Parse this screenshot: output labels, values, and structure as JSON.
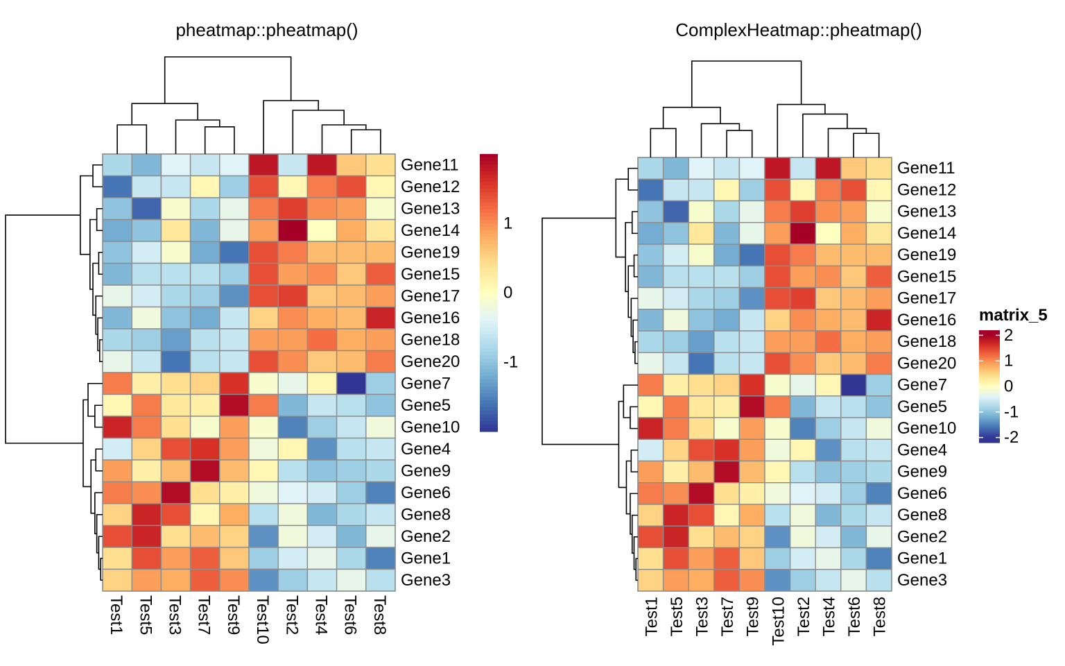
{
  "chart_data": {
    "type": "heatmap",
    "rows": [
      "Gene11",
      "Gene12",
      "Gene13",
      "Gene14",
      "Gene19",
      "Gene15",
      "Gene17",
      "Gene16",
      "Gene18",
      "Gene20",
      "Gene7",
      "Gene5",
      "Gene10",
      "Gene4",
      "Gene9",
      "Gene6",
      "Gene8",
      "Gene2",
      "Gene1",
      "Gene3"
    ],
    "columns": [
      "Test1",
      "Test5",
      "Test3",
      "Test7",
      "Test9",
      "Test10",
      "Test2",
      "Test4",
      "Test6",
      "Test8"
    ],
    "values": [
      [
        -0.8,
        -1.1,
        -0.4,
        -0.6,
        -0.4,
        1.8,
        -0.6,
        1.8,
        0.6,
        0.4
      ],
      [
        -1.6,
        -0.6,
        -0.6,
        0.1,
        -0.9,
        1.4,
        0.1,
        1.1,
        1.4,
        0.1
      ],
      [
        -1.0,
        -1.7,
        -0.1,
        -0.8,
        -0.3,
        1.1,
        1.5,
        1.0,
        0.9,
        -0.1
      ],
      [
        -1.2,
        -1.0,
        0.3,
        -1.1,
        -0.3,
        0.9,
        2.0,
        0.0,
        0.8,
        0.3
      ],
      [
        -1.0,
        -0.5,
        -0.1,
        -1.2,
        -1.6,
        1.4,
        1.1,
        0.7,
        0.7,
        0.7
      ],
      [
        -1.1,
        -0.7,
        -0.7,
        -0.7,
        -0.9,
        1.4,
        0.9,
        1.0,
        0.6,
        1.3
      ],
      [
        -0.3,
        -0.5,
        -0.8,
        -0.9,
        -1.4,
        1.4,
        1.5,
        0.6,
        0.7,
        0.9
      ],
      [
        -1.1,
        -0.2,
        -1.0,
        -1.2,
        -0.6,
        0.5,
        1.0,
        0.8,
        0.7,
        1.7
      ],
      [
        -0.8,
        -0.9,
        -1.3,
        -0.7,
        -0.6,
        0.9,
        0.9,
        1.2,
        0.8,
        0.9
      ],
      [
        -0.3,
        -0.6,
        -1.6,
        -0.7,
        -0.6,
        1.4,
        1.0,
        0.6,
        0.7,
        1.1
      ],
      [
        1.1,
        0.2,
        0.4,
        0.5,
        1.6,
        -0.1,
        -0.3,
        0.1,
        -2.0,
        -0.9
      ],
      [
        0.1,
        1.1,
        0.3,
        0.2,
        1.9,
        1.1,
        -1.1,
        -0.6,
        -0.7,
        -1.0
      ],
      [
        1.7,
        1.1,
        0.4,
        -0.1,
        0.9,
        -0.1,
        -1.5,
        -0.9,
        -0.6,
        -0.2
      ],
      [
        -0.5,
        0.5,
        1.4,
        1.6,
        0.9,
        -0.2,
        0.1,
        -1.4,
        -0.7,
        -0.6
      ],
      [
        0.9,
        0.2,
        0.7,
        1.9,
        0.7,
        0.1,
        -0.7,
        -1.0,
        -0.9,
        -0.8
      ],
      [
        1.1,
        1.0,
        1.9,
        0.4,
        0.2,
        -0.2,
        -0.4,
        -0.5,
        -0.9,
        -1.5
      ],
      [
        0.5,
        1.7,
        1.4,
        0.1,
        0.8,
        -0.7,
        -0.2,
        -1.1,
        -0.8,
        -0.6
      ],
      [
        1.4,
        1.7,
        0.4,
        0.7,
        0.5,
        -1.4,
        -0.2,
        -0.5,
        -1.1,
        -0.3
      ],
      [
        0.4,
        1.4,
        0.9,
        1.3,
        0.6,
        -0.9,
        -0.5,
        -0.3,
        -0.8,
        -1.5
      ],
      [
        0.5,
        0.9,
        0.8,
        1.3,
        1.0,
        -1.4,
        -0.9,
        -0.6,
        -0.3,
        -0.7
      ]
    ],
    "color_range": [
      -2,
      2
    ],
    "colors": [
      "#313695",
      "#4575b4",
      "#74add1",
      "#abd9e9",
      "#e0f3f8",
      "#ffffbf",
      "#fee090",
      "#fdae61",
      "#f46d43",
      "#d73027",
      "#a50026"
    ],
    "cell_border": "#8c8c8c",
    "panels": [
      {
        "title": "pheatmap::pheatmap()",
        "legend_title": "",
        "legend_ticks": [
          {
            "value": 1,
            "label": "1"
          },
          {
            "value": 0,
            "label": "0"
          },
          {
            "value": -1,
            "label": "-1"
          }
        ],
        "legend_range": [
          -2.0,
          2.0
        ],
        "legend_style": "pheatmap"
      },
      {
        "title": "ComplexHeatmap::pheatmap()",
        "legend_title": "matrix_5",
        "legend_ticks": [
          {
            "value": 2,
            "label": "2"
          },
          {
            "value": 1,
            "label": "1"
          },
          {
            "value": 0,
            "label": "0"
          },
          {
            "value": -1,
            "label": "-1"
          },
          {
            "value": -2,
            "label": "-2"
          }
        ],
        "legend_range": [
          -2.2,
          2.2
        ],
        "legend_style": "complex"
      }
    ],
    "col_dendrogram": {
      "left": [
        0,
        1
      ],
      "right": [
        1,
        1
      ]
    },
    "grid": false
  }
}
